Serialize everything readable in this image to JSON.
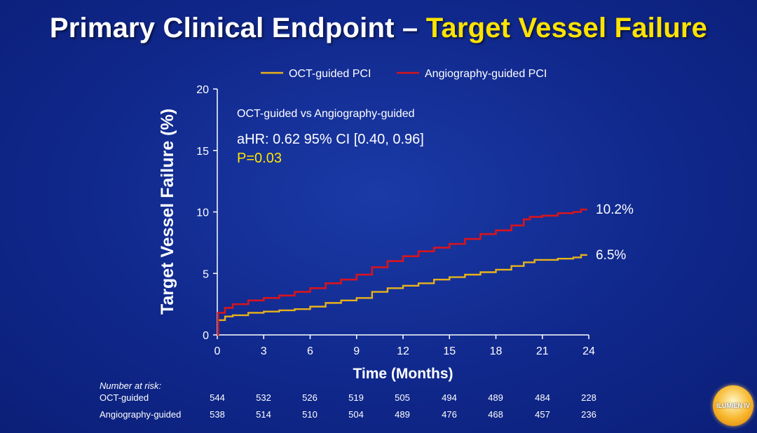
{
  "title": {
    "main": "Primary Clinical Endpoint – ",
    "highlight": "Target Vessel Failure"
  },
  "colors": {
    "oct": "#e8b21a",
    "angio": "#d8141c",
    "highlight": "#ffe300"
  },
  "legend": [
    "OCT-guided PCI",
    "Angiography-guided PCI"
  ],
  "annotation": {
    "line1": "OCT-guided vs Angiography-guided",
    "line2": "aHR: 0.62 95% CI [0.40, 0.96]",
    "line3": "P=0.03"
  },
  "chart_data": {
    "type": "line",
    "xlabel": "Time (Months)",
    "ylabel": "Target Vessel Failure (%)",
    "xlim": [
      0,
      24
    ],
    "ylim": [
      0,
      20
    ],
    "xticks": [
      0,
      3,
      6,
      9,
      12,
      15,
      18,
      21,
      24
    ],
    "yticks": [
      0,
      5,
      10,
      15,
      20
    ],
    "series": [
      {
        "name": "OCT-guided PCI",
        "end_label": "6.5%",
        "points": [
          [
            0,
            0
          ],
          [
            0.05,
            1.2
          ],
          [
            0.5,
            1.5
          ],
          [
            1,
            1.6
          ],
          [
            2,
            1.8
          ],
          [
            3,
            1.9
          ],
          [
            4,
            2.0
          ],
          [
            5,
            2.1
          ],
          [
            6,
            2.3
          ],
          [
            7,
            2.6
          ],
          [
            8,
            2.8
          ],
          [
            9,
            3.0
          ],
          [
            10,
            3.5
          ],
          [
            11,
            3.8
          ],
          [
            12,
            4.0
          ],
          [
            13,
            4.2
          ],
          [
            14,
            4.5
          ],
          [
            15,
            4.7
          ],
          [
            16,
            4.9
          ],
          [
            17,
            5.1
          ],
          [
            18,
            5.3
          ],
          [
            19,
            5.6
          ],
          [
            19.8,
            5.9
          ],
          [
            20.5,
            6.1
          ],
          [
            22,
            6.2
          ],
          [
            23,
            6.3
          ],
          [
            23.5,
            6.5
          ]
        ]
      },
      {
        "name": "Angiography-guided PCI",
        "end_label": "10.2%",
        "points": [
          [
            0,
            0
          ],
          [
            0.05,
            1.8
          ],
          [
            0.5,
            2.2
          ],
          [
            1,
            2.5
          ],
          [
            2,
            2.8
          ],
          [
            3,
            3.0
          ],
          [
            4,
            3.2
          ],
          [
            5,
            3.5
          ],
          [
            6,
            3.8
          ],
          [
            7,
            4.2
          ],
          [
            8,
            4.5
          ],
          [
            9,
            4.9
          ],
          [
            10,
            5.5
          ],
          [
            11,
            6.0
          ],
          [
            12,
            6.4
          ],
          [
            13,
            6.8
          ],
          [
            14,
            7.1
          ],
          [
            15,
            7.4
          ],
          [
            16,
            7.8
          ],
          [
            17,
            8.2
          ],
          [
            18,
            8.5
          ],
          [
            19,
            8.9
          ],
          [
            19.8,
            9.4
          ],
          [
            20.2,
            9.6
          ],
          [
            21,
            9.7
          ],
          [
            22,
            9.9
          ],
          [
            23,
            10.0
          ],
          [
            23.5,
            10.2
          ]
        ]
      }
    ]
  },
  "risk_table": {
    "header": "Number at risk:",
    "rows": [
      {
        "label": "OCT-guided",
        "values": [
          "544",
          "532",
          "526",
          "519",
          "505",
          "494",
          "489",
          "484",
          "228"
        ]
      },
      {
        "label": "Angiography-guided",
        "values": [
          "538",
          "514",
          "510",
          "504",
          "489",
          "476",
          "468",
          "457",
          "236"
        ]
      }
    ]
  },
  "logo_text": "ILUMIEN IV"
}
